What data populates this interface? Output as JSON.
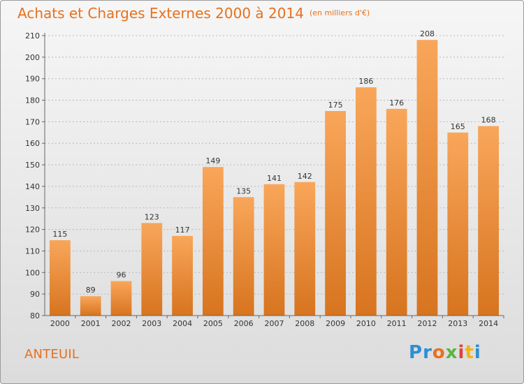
{
  "header": {
    "title": "Achats et Charges Externes 2000 à 2014",
    "subtitle": "(en milliers d'€)"
  },
  "commune": "ANTEUIL",
  "logo": {
    "text": "Proxiti",
    "letters": [
      {
        "char": "P",
        "color": "#2d8fd2"
      },
      {
        "char": "r",
        "color": "#2d8fd2"
      },
      {
        "char": "o",
        "color": "#e8701c"
      },
      {
        "char": "x",
        "color": "#5ab63f"
      },
      {
        "char": "i",
        "color": "#d9453b"
      },
      {
        "char": "t",
        "color": "#f2b418"
      },
      {
        "char": "i",
        "color": "#2d8fd2"
      }
    ]
  },
  "colors": {
    "bar_light": "#f9a65a",
    "bar_dark": "#d7741f",
    "accent": "#e8701c",
    "axis": "#666666",
    "grid": "#b8b8b8"
  },
  "chart_data": {
    "type": "bar",
    "title": "Achats et Charges Externes 2000 à 2014",
    "subtitle": "(en milliers d'€)",
    "categories": [
      "2000",
      "2001",
      "2002",
      "2003",
      "2004",
      "2005",
      "2006",
      "2007",
      "2008",
      "2009",
      "2010",
      "2011",
      "2012",
      "2013",
      "2014"
    ],
    "values": [
      115,
      89,
      96,
      123,
      117,
      149,
      135,
      141,
      142,
      175,
      186,
      176,
      208,
      165,
      168
    ],
    "ylim": [
      80,
      210
    ],
    "yticks": [
      80,
      90,
      100,
      110,
      120,
      130,
      140,
      150,
      160,
      170,
      180,
      190,
      200,
      210
    ],
    "grid": true,
    "data_labels": true
  }
}
